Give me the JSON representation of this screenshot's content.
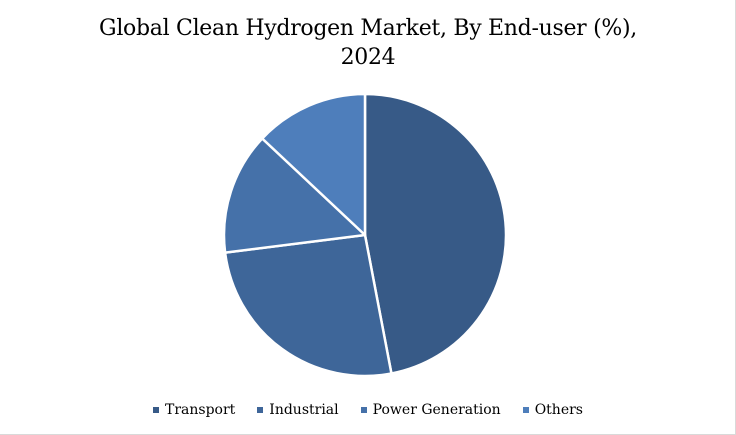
{
  "chart_data": {
    "type": "pie",
    "title_line1": "Global Clean Hydrogen Market, By End-user (%),",
    "title_line2": "2024",
    "categories": [
      "Transport",
      "Industrial",
      "Power Generation",
      "Others"
    ],
    "values": [
      47,
      26,
      14,
      13
    ],
    "colors": [
      "#375a87",
      "#3e6699",
      "#4571a9",
      "#4e7ebb"
    ],
    "slice_border_color": "#ffffff",
    "start_angle_deg": 0,
    "direction": "clockwise",
    "legend_position": "bottom"
  }
}
